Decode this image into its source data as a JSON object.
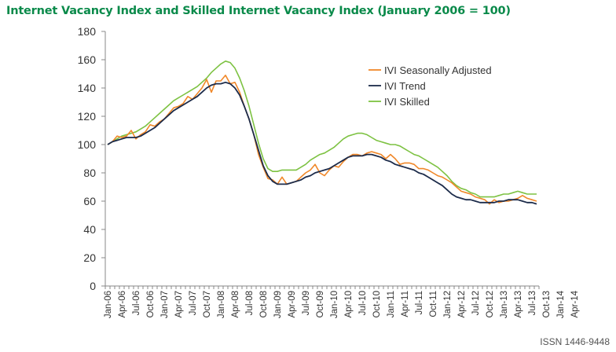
{
  "chart_data": {
    "type": "line",
    "title": "Internet Vacancy Index and Skilled Internet Vacancy Index (January 2006 = 100)",
    "xlabel": "",
    "ylabel": "",
    "ylim": [
      0,
      180
    ],
    "yticks": [
      0,
      20,
      40,
      60,
      80,
      100,
      120,
      140,
      160,
      180
    ],
    "x_labels": [
      "Jan-06",
      "Apr-06",
      "Jul-06",
      "Oct-06",
      "Jan-07",
      "Apr-07",
      "Jul-07",
      "Oct-07",
      "Jan-08",
      "Apr-08",
      "Jul-08",
      "Oct-08",
      "Jan-09",
      "Apr-09",
      "Jul-09",
      "Oct-09",
      "Jan-10",
      "Apr-10",
      "Jul-10",
      "Oct-10",
      "Jan-11",
      "Apr-11",
      "Jul-11",
      "Oct-11",
      "Jan-12",
      "Apr-12",
      "Jul-12",
      "Oct-12",
      "Jan-13",
      "Apr-13",
      "Jul-13",
      "Oct-13",
      "Jan-14",
      "Apr-14"
    ],
    "x_start": "Jan-06",
    "x_end": "Jun-14",
    "grid": false,
    "legend_position": "top-right",
    "series": [
      {
        "name": "IVI Seasonally Adjusted",
        "color": "#f0882a",
        "values": [
          100,
          102,
          106,
          105,
          106,
          110,
          104,
          107,
          109,
          114,
          113,
          116,
          118,
          122,
          126,
          127,
          129,
          134,
          132,
          136,
          140,
          146,
          137,
          145,
          145,
          149,
          143,
          144,
          137,
          127,
          118,
          107,
          93,
          84,
          76,
          75,
          72,
          77,
          72,
          73,
          74,
          77,
          80,
          82,
          86,
          80,
          78,
          82,
          85,
          84,
          88,
          91,
          93,
          93,
          92,
          94,
          95,
          94,
          93,
          90,
          93,
          90,
          86,
          87,
          87,
          86,
          83,
          83,
          82,
          80,
          78,
          77,
          75,
          73,
          70,
          67,
          66,
          65,
          63,
          62,
          61,
          58,
          61,
          59,
          60,
          60,
          61,
          62,
          64,
          62,
          61,
          60
        ]
      },
      {
        "name": "IVI Trend",
        "color": "#1c2b4a",
        "values": [
          100,
          102,
          103,
          104,
          105,
          105,
          105,
          106,
          108,
          110,
          112,
          115,
          118,
          121,
          124,
          126,
          128,
          130,
          132,
          134,
          137,
          140,
          142,
          143,
          143,
          144,
          143,
          140,
          135,
          127,
          118,
          107,
          96,
          85,
          78,
          74,
          72,
          72,
          72,
          73,
          74,
          75,
          77,
          78,
          80,
          81,
          82,
          83,
          85,
          87,
          89,
          91,
          92,
          92,
          92,
          93,
          93,
          92,
          91,
          89,
          88,
          86,
          85,
          84,
          83,
          82,
          80,
          79,
          77,
          75,
          73,
          71,
          68,
          65,
          63,
          62,
          61,
          61,
          60,
          59,
          59,
          59,
          59,
          60,
          60,
          61,
          61,
          61,
          60,
          59,
          59,
          58
        ]
      },
      {
        "name": "IVI Skilled",
        "color": "#7dc242",
        "values": [
          100,
          102,
          104,
          106,
          107,
          108,
          109,
          111,
          113,
          116,
          119,
          122,
          125,
          128,
          131,
          133,
          135,
          137,
          139,
          141,
          144,
          147,
          151,
          154,
          157,
          159,
          158,
          154,
          147,
          138,
          127,
          114,
          101,
          90,
          83,
          81,
          81,
          82,
          82,
          82,
          82,
          84,
          86,
          89,
          91,
          93,
          94,
          96,
          98,
          101,
          104,
          106,
          107,
          108,
          108,
          107,
          105,
          103,
          102,
          101,
          100,
          100,
          99,
          97,
          95,
          93,
          92,
          90,
          88,
          86,
          84,
          81,
          78,
          74,
          71,
          69,
          68,
          66,
          65,
          63,
          63,
          63,
          63,
          64,
          65,
          65,
          66,
          67,
          66,
          65,
          65,
          65
        ]
      }
    ]
  },
  "footer": {
    "issn": "ISSN 1446-9448"
  }
}
